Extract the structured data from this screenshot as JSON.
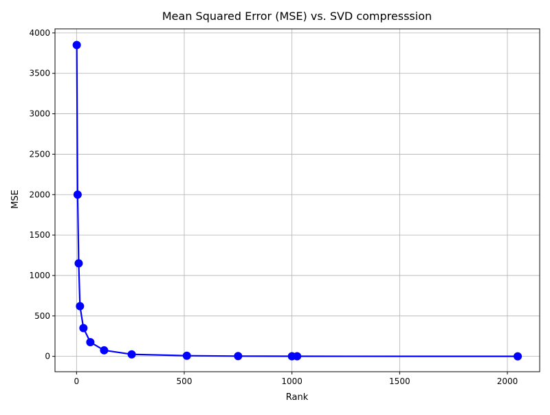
{
  "chart_data": {
    "type": "line",
    "title": "Mean Squared Error (MSE) vs. SVD compresssion",
    "xlabel": "Rank",
    "ylabel": "MSE",
    "xlim": [
      -100,
      2150
    ],
    "ylim": [
      -190,
      4050
    ],
    "xticks": [
      0,
      500,
      1000,
      1500,
      2000
    ],
    "yticks": [
      0,
      500,
      1000,
      1500,
      2000,
      2500,
      3000,
      3500,
      4000
    ],
    "grid": true,
    "series": [
      {
        "color": "#0000ff",
        "marker": "circle",
        "x": [
          1,
          5,
          10,
          16,
          32,
          64,
          128,
          256,
          512,
          750,
          1000,
          1024,
          2048
        ],
        "y": [
          3850,
          2000,
          1150,
          620,
          350,
          175,
          75,
          25,
          8,
          3,
          1,
          1,
          0
        ]
      }
    ]
  }
}
